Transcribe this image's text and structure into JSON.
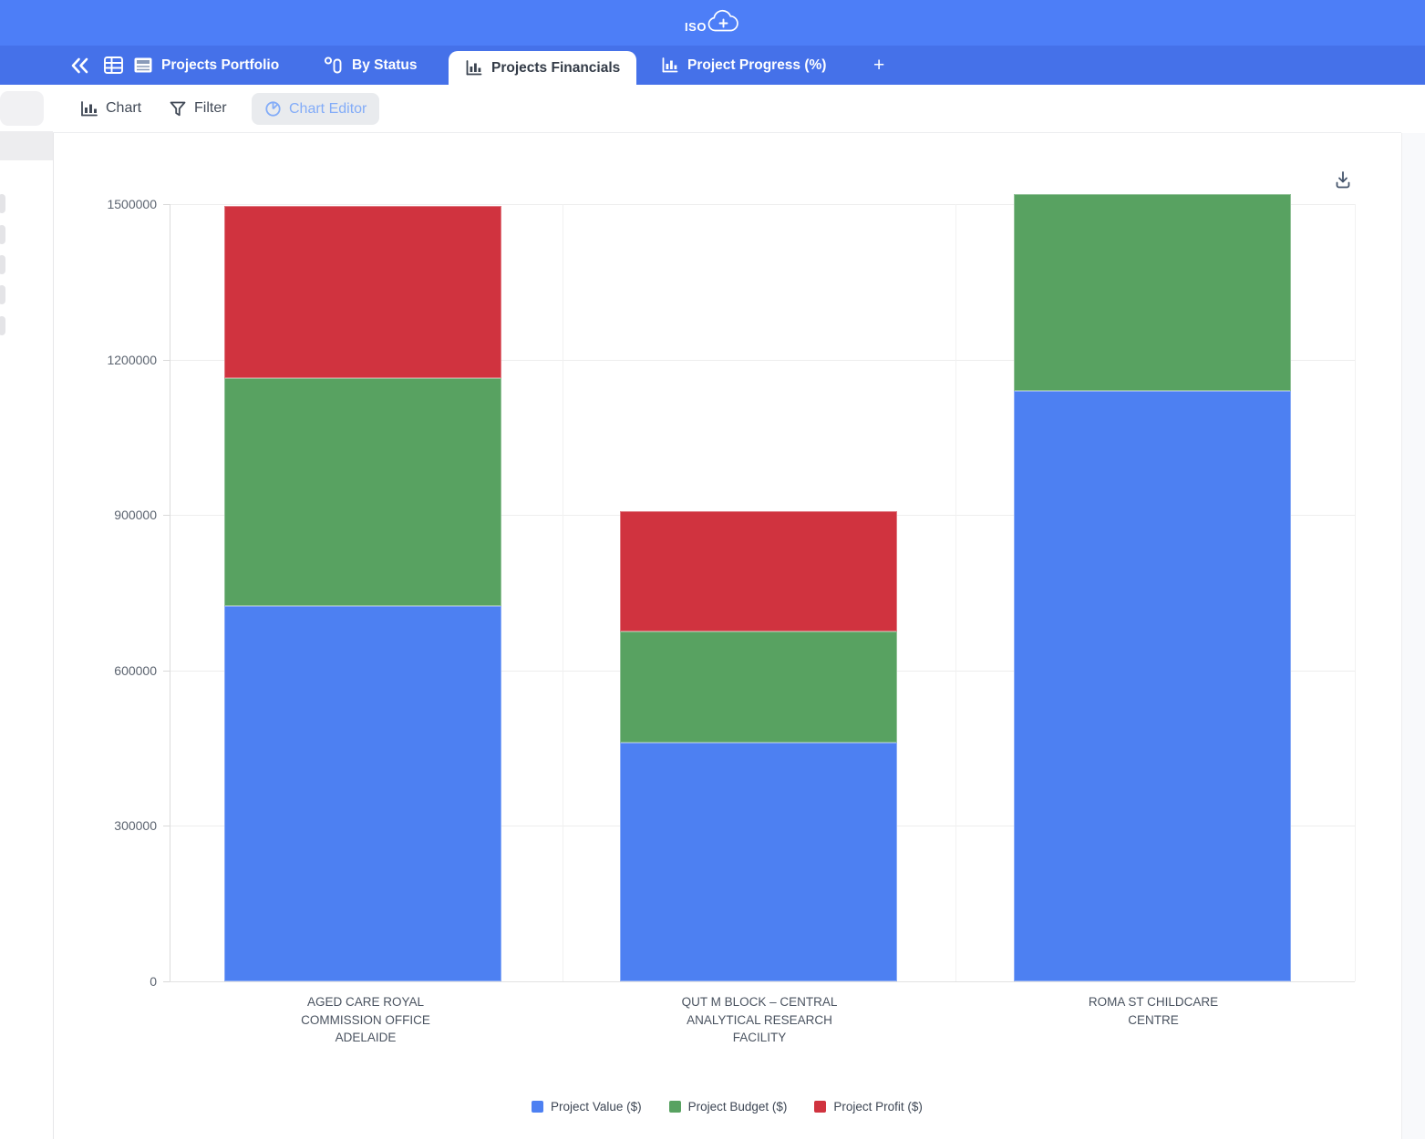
{
  "header": {
    "logo_text": "ISO",
    "logo_plus": "+"
  },
  "tab_bar": {
    "tabs": [
      {
        "label": "Projects Portfolio",
        "icon": "portfolio-icon",
        "active": false
      },
      {
        "label": "By Status",
        "icon": "status-icon",
        "active": false
      },
      {
        "label": "Projects Financials",
        "icon": "bar-chart-icon",
        "active": true
      },
      {
        "label": "Project Progress (%)",
        "icon": "bar-chart-icon",
        "active": false
      }
    ],
    "add_tab_label": "+"
  },
  "toolbar": {
    "chart_label": "Chart",
    "filter_label": "Filter",
    "chart_editor_label": "Chart Editor"
  },
  "colors": {
    "top_bar": "#4d7ef7",
    "tab_bar": "#4571e9",
    "chart_editor_text": "#83acf8"
  },
  "chart_data": {
    "type": "bar",
    "stacked": true,
    "title": "",
    "xlabel": "",
    "ylabel": "",
    "categories": [
      "AGED CARE ROYAL COMMISSION OFFICE ADELAIDE",
      "QUT M BLOCK – CENTRAL ANALYTICAL RESEARCH FACILITY",
      "ROMA ST CHILDCARE CENTRE"
    ],
    "category_lines": [
      [
        "AGED CARE ROYAL",
        "COMMISSION OFFICE",
        "ADELAIDE"
      ],
      [
        "QUT M BLOCK – CENTRAL",
        "ANALYTICAL RESEARCH",
        "FACILITY"
      ],
      [
        "ROMA ST CHILDCARE",
        "CENTRE"
      ]
    ],
    "series": [
      {
        "name": "Project Value ($)",
        "color": "#4d80f2",
        "values": [
          725000,
          460000,
          1140000
        ]
      },
      {
        "name": "Project Budget ($)",
        "color": "#58a261",
        "values": [
          440000,
          215000,
          380000
        ]
      },
      {
        "name": "Project Profit ($)",
        "color": "#d0333f",
        "values": [
          332000,
          233000,
          0
        ]
      }
    ],
    "ylim": [
      0,
      1500000
    ],
    "yticks": [
      0,
      300000,
      600000,
      900000,
      1200000,
      1500000
    ],
    "grid": true,
    "legend_position": "bottom"
  }
}
